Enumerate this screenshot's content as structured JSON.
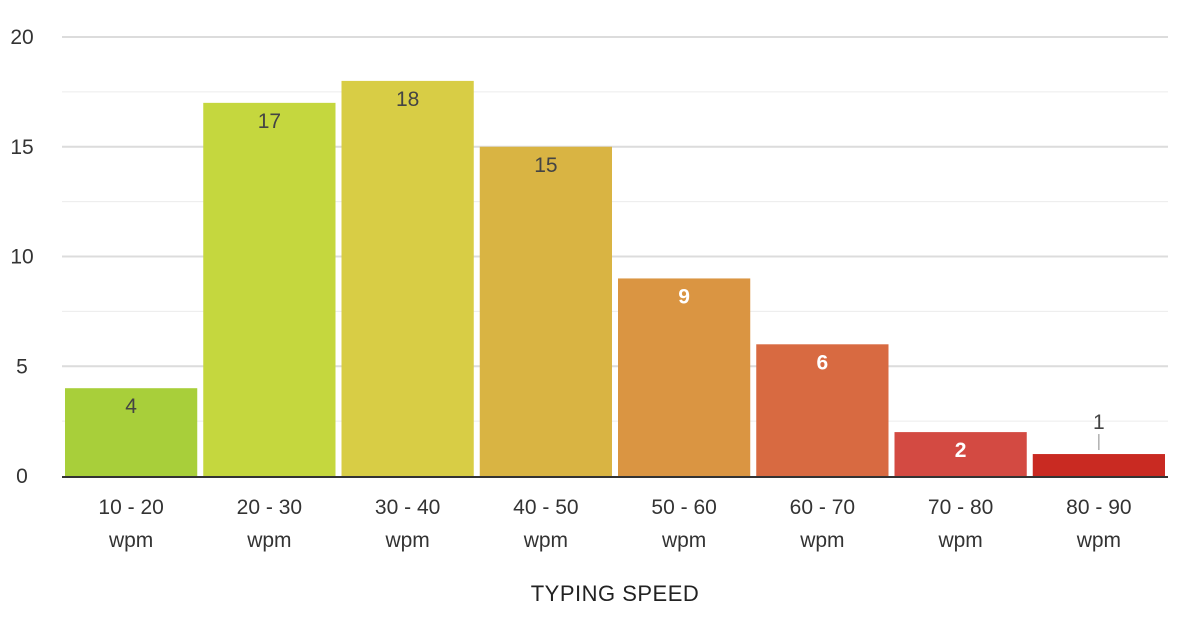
{
  "chart_data": {
    "type": "bar",
    "categories": [
      [
        "10 - 20",
        "wpm"
      ],
      [
        "20 - 30",
        "wpm"
      ],
      [
        "30 - 40",
        "wpm"
      ],
      [
        "40 - 50",
        "wpm"
      ],
      [
        "50 - 60",
        "wpm"
      ],
      [
        "60 - 70",
        "wpm"
      ],
      [
        "70 - 80",
        "wpm"
      ],
      [
        "80 - 90",
        "wpm"
      ]
    ],
    "values": [
      4,
      17,
      18,
      15,
      9,
      6,
      2,
      1
    ],
    "colors": [
      "#a8cf3a",
      "#c5d73e",
      "#d8cd45",
      "#d9b443",
      "#da9542",
      "#d86a41",
      "#d34a42",
      "#c92a22"
    ],
    "label_colors": [
      "#444444",
      "#444444",
      "#444444",
      "#444444",
      "#ffffff",
      "#ffffff",
      "#ffffff",
      "#444444"
    ],
    "xlabel": "TYPING SPEED",
    "ylabel": "",
    "ylim": [
      0,
      20
    ],
    "yticks": [
      0,
      5,
      10,
      15,
      20
    ],
    "grid": true,
    "legend": "none"
  }
}
